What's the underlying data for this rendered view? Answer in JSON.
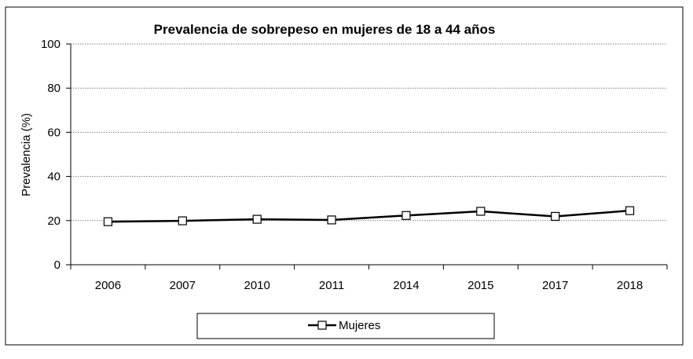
{
  "chart_data": {
    "type": "line",
    "title": "Prevalencia de sobrepeso en mujeres de 18 a 44 años",
    "xlabel": "",
    "ylabel": "Prevalencia (%)",
    "categories": [
      "2006",
      "2007",
      "2010",
      "2011",
      "2014",
      "2015",
      "2017",
      "2018"
    ],
    "series": [
      {
        "name": "Mujeres",
        "values": [
          19.5,
          19.9,
          20.6,
          20.3,
          22.3,
          24.2,
          21.9,
          24.5
        ]
      }
    ],
    "ylim": [
      0,
      100
    ],
    "yticks": [
      "0",
      "20",
      "40",
      "60",
      "80",
      "100"
    ],
    "grid": true,
    "legend": "bottom",
    "colors": {
      "line": "#000000",
      "marker_fill": "#ffffff",
      "grid": "#808080"
    }
  }
}
